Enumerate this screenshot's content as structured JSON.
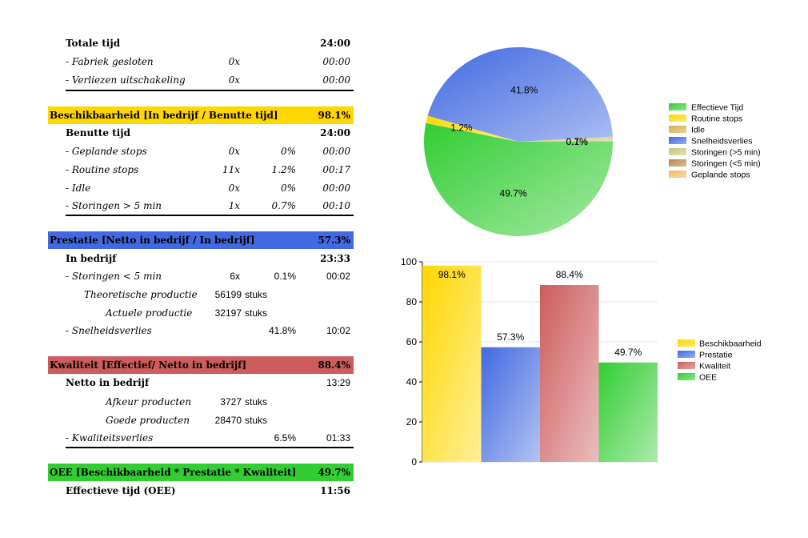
{
  "table": {
    "total": {
      "label": "Totale tijd",
      "time": "24:00"
    },
    "fabriek": {
      "label": "- Fabriek gesloten",
      "count": "0x",
      "time": "00:00"
    },
    "verliezen": {
      "label": "- Verliezen uitschakeling",
      "count": "0x",
      "time": "00:00"
    },
    "beschik_band": {
      "label": "Beschikbaarheid  [In bedrijf / Benutte tijd]",
      "value": "98.1%",
      "color": "#ffd700"
    },
    "benutte": {
      "label": "Benutte tijd",
      "time": "24:00"
    },
    "geplande": {
      "label": "- Geplande stops",
      "count": "0x",
      "pct": "0%",
      "time": "00:00"
    },
    "routine": {
      "label": "- Routine stops",
      "count": "11x",
      "pct": "1.2%",
      "time": "00:17"
    },
    "idle": {
      "label": "- Idle",
      "count": "0x",
      "pct": "0%",
      "time": "00:00"
    },
    "storingen_gt": {
      "label": "- Storingen > 5 min",
      "count": "1x",
      "pct": "0.7%",
      "time": "00:10"
    },
    "prestatie_band": {
      "label": "Prestatie [Netto in bedrijf / In bedrijf]",
      "value": "57.3%",
      "color": "#4169e1"
    },
    "in_bedrijf": {
      "label": "In bedrijf",
      "time": "23:33"
    },
    "storingen_lt": {
      "label": "- Storingen < 5 min",
      "count": "6x",
      "pct": "0.1%",
      "time": "00:02"
    },
    "theor": {
      "label": "Theoretische productie",
      "count": "56199",
      "unit": "stuks"
    },
    "actueel": {
      "label": "Actuele productie",
      "count": "32197",
      "unit": "stuks"
    },
    "snelheid": {
      "label": "- Snelheidsverlies",
      "pct": "41.8%",
      "time": "10:02"
    },
    "kwaliteit_band": {
      "label": "Kwaliteit [Effectief/ Netto in bedrijf]",
      "value": "88.4%",
      "color": "#cd5c5c"
    },
    "netto": {
      "label": "Netto in bedrijf",
      "time": "13:29"
    },
    "afkeur": {
      "label": "Afkeur producten",
      "count": "3727",
      "unit": "stuks"
    },
    "goede": {
      "label": "Goede producten",
      "count": "28470",
      "unit": "stuks"
    },
    "kwaliteitsverlies": {
      "label": "- Kwaliteitsverlies",
      "pct": "6.5%",
      "time": "01:33"
    },
    "oee_band": {
      "label": "OEE [Beschikbaarheid * Prestatie * Kwaliteit]",
      "value": "49.7%",
      "color": "#32cd32"
    },
    "effectieve": {
      "label": "Effectieve tijd (OEE)",
      "time": "11:56"
    }
  },
  "chart_data": [
    {
      "type": "pie",
      "slices": [
        {
          "name": "Effectieve Tijd",
          "value": 49.7,
          "label": "49.7%",
          "color": "#32cd32"
        },
        {
          "name": "Routine stops",
          "value": 1.2,
          "label": "1.2%",
          "color": "#ffd700"
        },
        {
          "name": "Idle",
          "value": 0,
          "label": "",
          "color": "#d4b04a"
        },
        {
          "name": "Snelheidsverlies",
          "value": 41.8,
          "label": "41.8%",
          "color": "#4169e1"
        },
        {
          "name": "Storingen (>5 min)",
          "value": 0.7,
          "label": "0.7%",
          "color": "#c8c878"
        },
        {
          "name": "Storingen (<5 min)",
          "value": 0.1,
          "label": "0.1%",
          "color": "#b8864b"
        },
        {
          "name": "Geplande stops",
          "value": 0,
          "label": "",
          "color": "#f4b860"
        }
      ],
      "legend": "right"
    },
    {
      "type": "bar",
      "categories": [
        "Beschikbaarheid",
        "Prestatie",
        "Kwaliteit",
        "OEE"
      ],
      "values": [
        98.1,
        57.3,
        88.4,
        49.7
      ],
      "labels": [
        "98.1%",
        "57.3%",
        "88.4%",
        "49.7%"
      ],
      "colors": [
        "#ffd700",
        "#4169e1",
        "#cd5c5c",
        "#32cd32"
      ],
      "ylim": [
        0,
        100
      ],
      "yticks": [
        0,
        20,
        40,
        60,
        80,
        100
      ],
      "legend": "right"
    }
  ]
}
